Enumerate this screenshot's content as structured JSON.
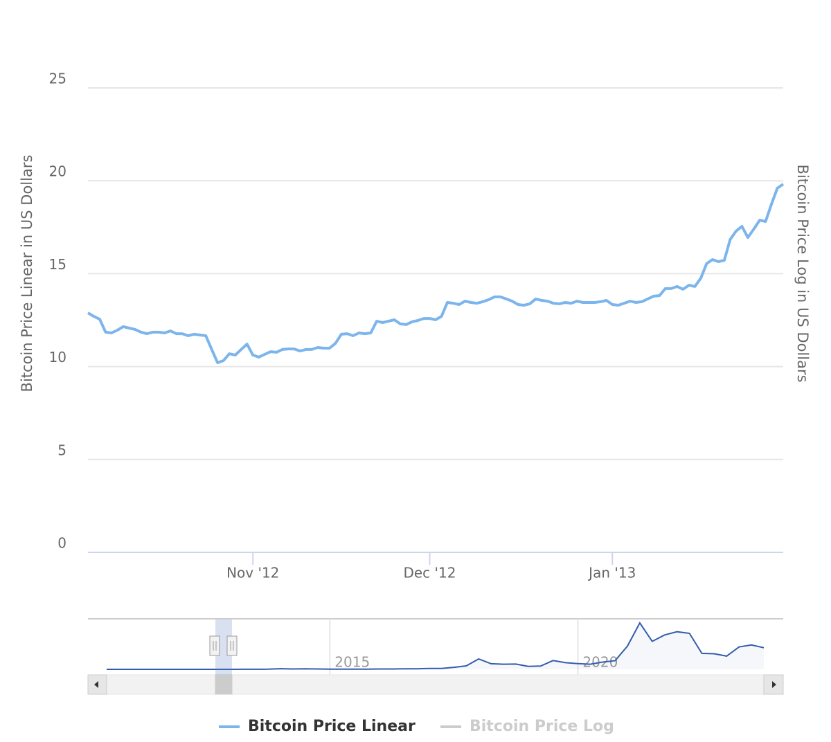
{
  "chart_data": [
    {
      "type": "line",
      "y_label": "Bitcoin Price Linear in US Dollars",
      "y2_label": "Bitcoin Price Log in US Dollars",
      "categories": [
        null,
        null,
        null,
        null,
        null,
        null,
        null,
        null,
        null,
        null,
        null,
        null,
        null,
        null,
        null,
        null,
        null,
        null,
        null,
        null,
        null,
        null,
        null,
        null,
        null,
        null,
        null,
        null,
        null,
        null,
        null,
        null,
        null,
        null,
        null,
        null,
        null,
        null,
        null,
        null,
        null,
        null,
        null,
        null,
        null,
        null,
        null,
        null,
        null,
        null,
        null,
        null,
        null,
        null,
        null,
        null,
        null,
        null,
        null,
        null,
        null,
        null,
        null,
        null,
        null,
        null,
        null,
        null,
        null,
        null,
        null,
        null,
        null,
        null,
        null,
        null,
        null,
        null,
        null,
        null,
        null,
        null,
        null,
        null,
        null,
        null,
        null,
        null,
        null,
        null,
        null,
        null,
        null,
        null,
        null,
        null,
        null,
        null,
        null,
        null,
        null,
        null,
        null,
        null,
        null,
        null,
        null,
        null,
        null,
        null,
        null,
        null,
        null,
        null,
        null,
        null,
        null,
        null,
        null
      ],
      "xticks": [
        {
          "value": 28,
          "label": "Nov '12"
        },
        {
          "value": 58,
          "label": "Dec '12"
        },
        {
          "value": 89,
          "label": "Jan '13"
        }
      ],
      "ylim": [
        0,
        25
      ],
      "yticks": [
        0,
        5,
        10,
        15,
        20,
        25
      ],
      "grid": true,
      "series": [
        {
          "name": "Bitcoin Price Linear",
          "color": "#7cb5ec",
          "values": [
            12.89,
            12.7,
            12.55,
            11.85,
            11.81,
            11.96,
            12.15,
            12.07,
            12.0,
            11.85,
            11.77,
            11.85,
            11.85,
            11.81,
            11.92,
            11.77,
            11.77,
            11.66,
            11.74,
            11.7,
            11.66,
            10.92,
            10.21,
            10.32,
            10.69,
            10.62,
            10.92,
            11.21,
            10.62,
            10.51,
            10.66,
            10.8,
            10.77,
            10.92,
            10.95,
            10.95,
            10.84,
            10.92,
            10.92,
            11.03,
            10.99,
            10.99,
            11.25,
            11.74,
            11.77,
            11.66,
            11.81,
            11.77,
            11.81,
            12.44,
            12.37,
            12.44,
            12.52,
            12.3,
            12.26,
            12.41,
            12.48,
            12.59,
            12.59,
            12.52,
            12.7,
            13.45,
            13.41,
            13.34,
            13.52,
            13.45,
            13.41,
            13.49,
            13.6,
            13.75,
            13.75,
            13.64,
            13.52,
            13.34,
            13.3,
            13.38,
            13.64,
            13.56,
            13.52,
            13.41,
            13.38,
            13.45,
            13.41,
            13.52,
            13.45,
            13.45,
            13.45,
            13.49,
            13.56,
            13.34,
            13.3,
            13.41,
            13.52,
            13.45,
            13.49,
            13.64,
            13.79,
            13.82,
            14.2,
            14.2,
            14.31,
            14.16,
            14.38,
            14.31,
            14.75,
            15.54,
            15.76,
            15.65,
            15.72,
            16.84,
            17.29,
            17.55,
            16.95,
            17.4,
            17.88,
            17.81,
            18.74,
            19.6,
            19.82
          ]
        },
        {
          "name": "Bitcoin Price Log",
          "color": "#cccccc",
          "visible": false
        }
      ]
    },
    {
      "type": "area",
      "categories": [
        null,
        null,
        null,
        null,
        null,
        null,
        null,
        null,
        null,
        null,
        null,
        null,
        null,
        null,
        null,
        null,
        null,
        null,
        null,
        null,
        null,
        null,
        null,
        null,
        null,
        null,
        null,
        null,
        null,
        null,
        null,
        null,
        null,
        null,
        null,
        null,
        null,
        null,
        null,
        null,
        null,
        null,
        null,
        null,
        null,
        null,
        null,
        null,
        null,
        null,
        null,
        null,
        null,
        null
      ],
      "xticks": [
        {
          "value": 18,
          "label": "2015"
        },
        {
          "value": 38,
          "label": "2020"
        }
      ],
      "color": "#335cad",
      "values": [
        0.07,
        0.2,
        0.3,
        0.8,
        15,
        5,
        5,
        5,
        7,
        12,
        13,
        100,
        100,
        130,
        800,
        450,
        600,
        400,
        300,
        250,
        250,
        240,
        430,
        420,
        650,
        610,
        1000,
        1100,
        2500,
        4300,
        13000,
        7000,
        6400,
        6600,
        3700,
        4100,
        11000,
        8300,
        7200,
        6400,
        9100,
        10700,
        29000,
        58000,
        35000,
        43000,
        47000,
        45000,
        20000,
        19500,
        16500,
        28000,
        30500,
        27000
      ]
    }
  ]
}
